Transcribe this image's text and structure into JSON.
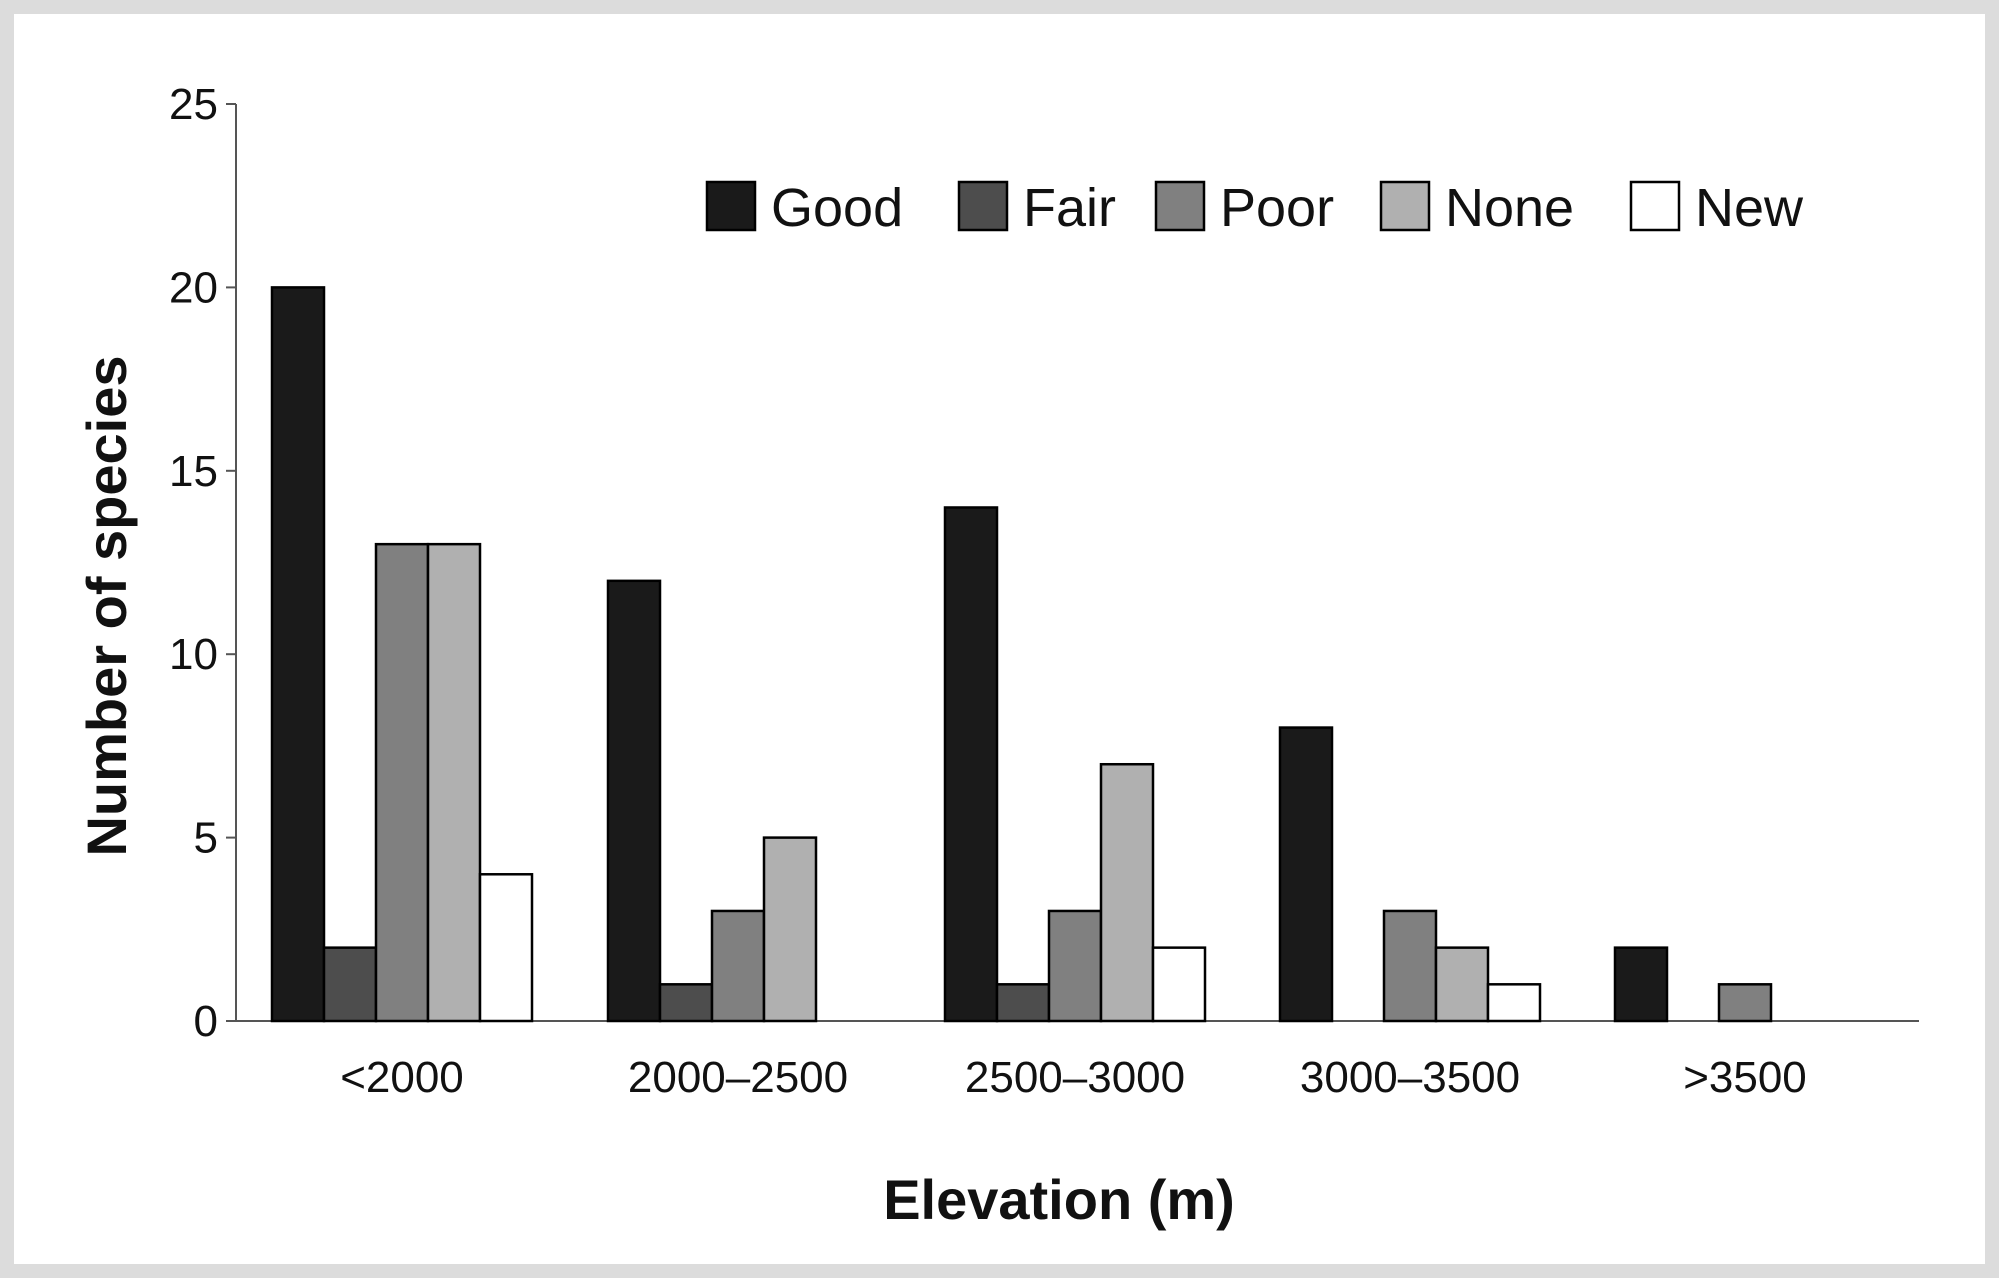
{
  "chart_data": {
    "type": "bar",
    "title": "",
    "xlabel": "Elevation (m)",
    "ylabel": "Number of species",
    "categories": [
      "<2000",
      "2000–2500",
      "2500–3000",
      "3000–3500",
      ">3500"
    ],
    "series": [
      {
        "name": "Good",
        "color": "#1a1a1a",
        "values": [
          20,
          12,
          14,
          8,
          2
        ]
      },
      {
        "name": "Fair",
        "color": "#4d4d4d",
        "values": [
          2,
          1,
          1,
          0,
          0
        ]
      },
      {
        "name": "Poor",
        "color": "#808080",
        "values": [
          13,
          3,
          3,
          3,
          1
        ]
      },
      {
        "name": "None",
        "color": "#b0b0b0",
        "values": [
          13,
          5,
          7,
          2,
          0
        ]
      },
      {
        "name": "New",
        "color": "#ffffff",
        "values": [
          4,
          0,
          2,
          1,
          0
        ]
      }
    ],
    "ylim": [
      0,
      25
    ],
    "yticks": [
      0,
      5,
      10,
      15,
      20,
      25
    ],
    "grid": false,
    "legend": "top-right"
  }
}
